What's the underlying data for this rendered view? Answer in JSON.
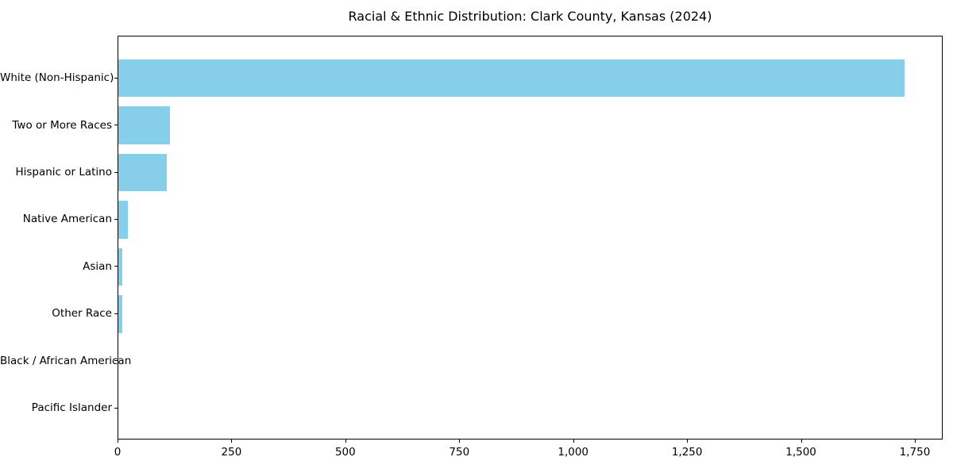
{
  "chart_data": {
    "type": "bar",
    "orientation": "horizontal",
    "title": "Racial & Ethnic Distribution: Clark County, Kansas (2024)",
    "categories": [
      "White (Non-Hispanic)",
      "Two or More Races",
      "Hispanic or Latino",
      "Native American",
      "Asian",
      "Other Race",
      "Black / African American",
      "Pacific Islander"
    ],
    "values": [
      1725,
      113,
      106,
      21,
      9,
      8,
      0,
      0
    ],
    "xlabel": "",
    "ylabel": "",
    "xlim": [
      0,
      1811
    ],
    "x_ticks": [
      0,
      250,
      500,
      750,
      1000,
      1250,
      1500,
      1750
    ],
    "x_tick_labels": [
      "0",
      "250",
      "500",
      "750",
      "1,000",
      "1,250",
      "1,500",
      "1,750"
    ],
    "bar_color": "#87CEEB",
    "axis_color": "#000000",
    "background_color": "#ffffff",
    "grid": false,
    "legend": null
  }
}
